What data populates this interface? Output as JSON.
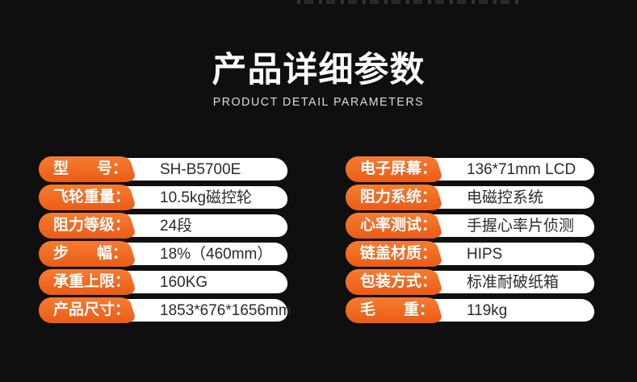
{
  "page": {
    "title": "产品详细参数",
    "subtitle": "PRODUCT DETAIL PARAMETERS"
  },
  "colors": {
    "background": "#0f0f0f",
    "accent": "#f1671f",
    "accent_light": "#f67c30",
    "accent_dark": "#ec5c17",
    "pill": "#ffffff",
    "label_text": "#ffffff",
    "value_text": "#2b2b2b"
  },
  "specs": {
    "left": [
      {
        "label": "型号：",
        "value": "SH-B5700E"
      },
      {
        "label": "飞轮重量：",
        "value": "10.5kg磁控轮"
      },
      {
        "label": "阻力等级：",
        "value": "24段"
      },
      {
        "label": "步幅：",
        "value": "18%（460mm）"
      },
      {
        "label": "承重上限：",
        "value": "160KG"
      },
      {
        "label": "产品尺寸：",
        "value": "1853*676*1656mm"
      }
    ],
    "right": [
      {
        "label": "电子屏幕：",
        "value": "136*71mm LCD"
      },
      {
        "label": "阻力系统：",
        "value": "电磁控系统"
      },
      {
        "label": "心率测试：",
        "value": "手握心率片侦测"
      },
      {
        "label": "链盖材质：",
        "value": "HIPS"
      },
      {
        "label": "包装方式：",
        "value": "标准耐破纸箱"
      },
      {
        "label": "毛重：",
        "value": "119kg"
      }
    ]
  }
}
